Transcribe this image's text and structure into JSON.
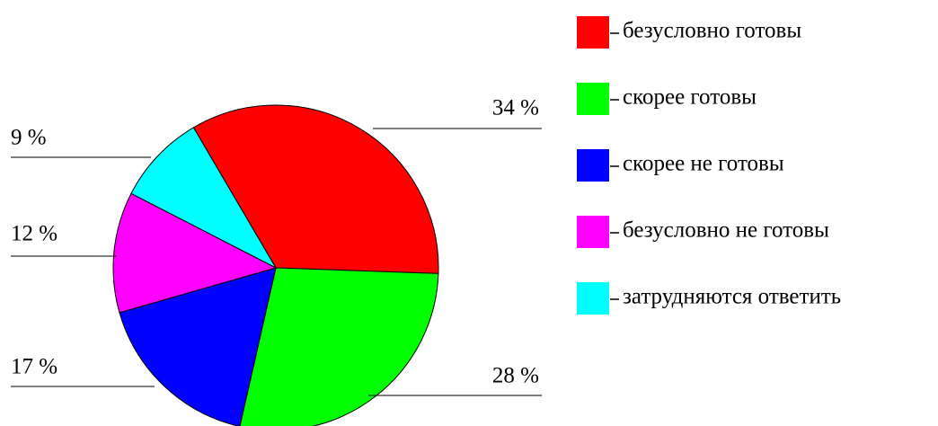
{
  "chart_data": {
    "type": "pie",
    "categories": [
      "безусловно готовы",
      "скорее готовы",
      "скорее не готовы",
      "безусловно не готовы",
      "затрудняются ответить"
    ],
    "values": [
      34,
      28,
      17,
      12,
      9
    ],
    "value_labels": [
      "34 %",
      "28 %",
      "17 %",
      "12 %",
      "9 %"
    ],
    "colors": [
      "#ff0000",
      "#00ff00",
      "#0000ff",
      "#ff00ff",
      "#00ffff"
    ],
    "legend": "right"
  }
}
